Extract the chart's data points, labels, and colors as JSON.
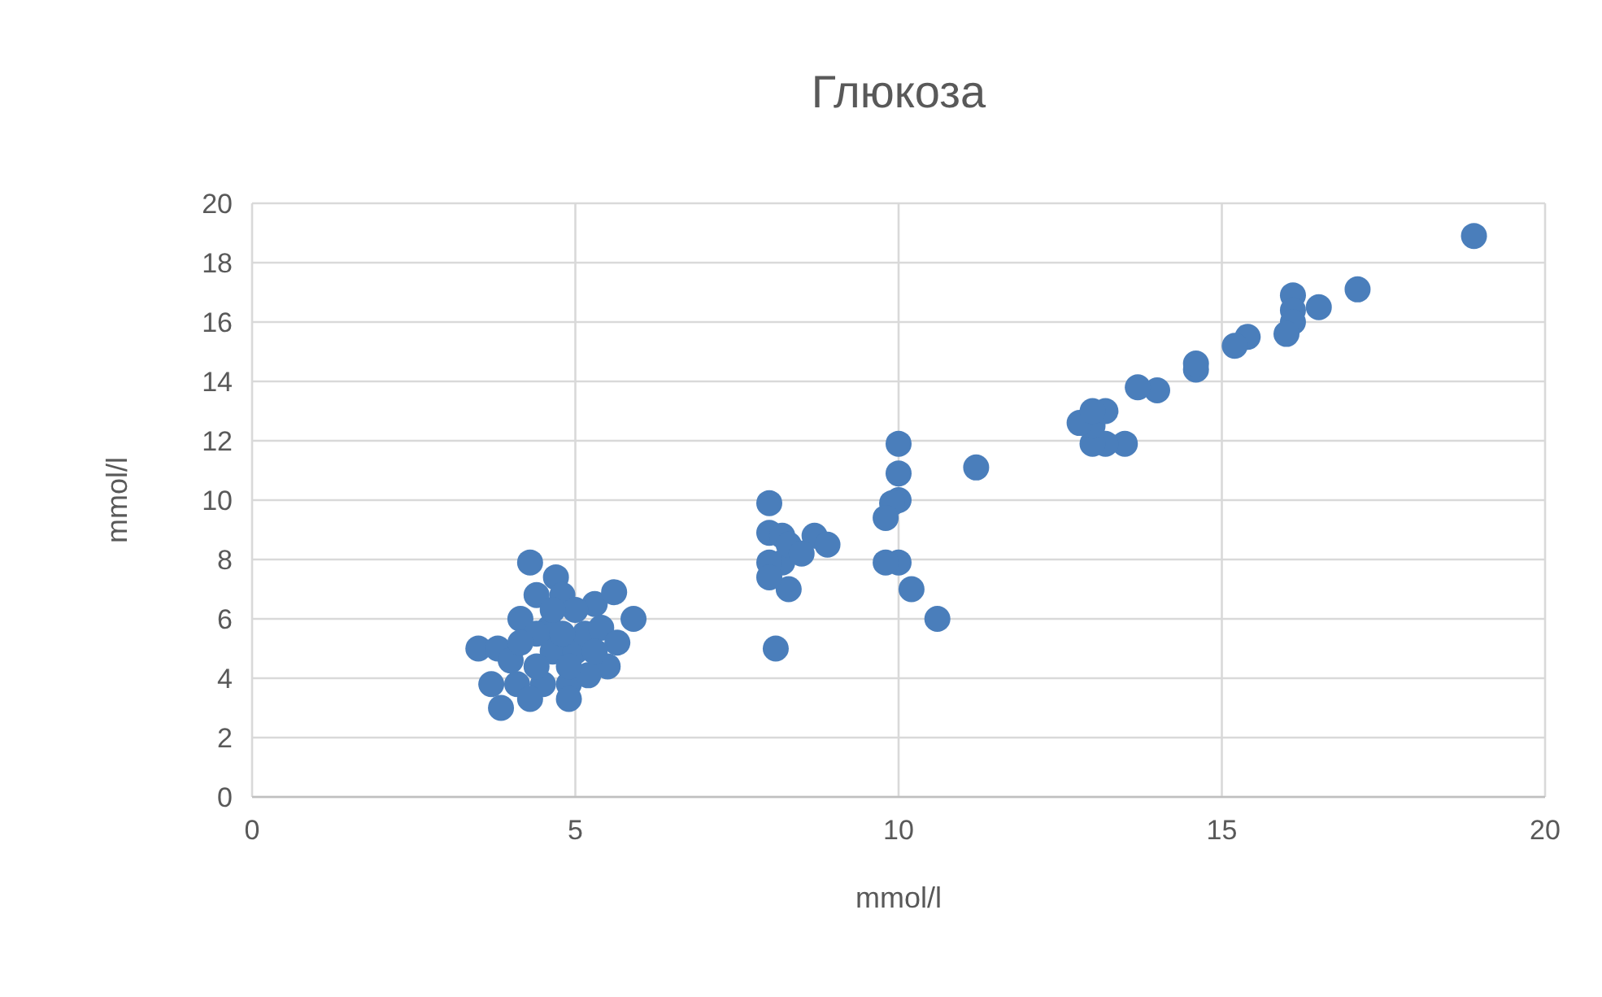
{
  "chart_data": {
    "type": "scatter",
    "title": "Глюкоза",
    "xlabel": "mmol/l",
    "ylabel": "mmol/l",
    "xlim": [
      0,
      20
    ],
    "xticks": [
      0,
      5,
      10,
      15,
      20
    ],
    "ylim": [
      0,
      20
    ],
    "yticks": [
      0,
      2,
      4,
      6,
      8,
      10,
      12,
      14,
      16,
      18,
      20
    ],
    "grid": true,
    "marker": "circle",
    "series": [
      {
        "color": "#4a7ebb",
        "x": [
          18.9,
          17.1,
          16.5,
          16.1,
          16.1,
          16.1,
          16.0,
          15.4,
          15.2,
          14.6,
          14.6,
          14.0,
          13.7,
          13.5,
          13.2,
          13.0,
          13.0,
          12.8,
          13.2,
          13.0,
          11.2,
          10.0,
          10.0,
          10.0,
          9.9,
          9.8,
          10.0,
          9.8,
          10.2,
          10.6,
          8.0,
          8.0,
          8.2,
          8.2,
          8.0,
          8.3,
          8.7,
          8.9,
          8.5,
          8.3,
          8.1,
          8.0,
          3.5,
          3.7,
          3.85,
          3.8,
          4.1,
          4.15,
          4.3,
          4.4,
          4.6,
          4.7,
          4.8,
          4.65,
          4.5,
          4.9,
          5.0,
          5.15,
          5.3,
          5.4,
          5.6,
          5.65,
          5.9,
          5.5,
          5.2,
          4.9,
          4.3,
          4.0,
          4.4,
          4.8,
          5.0,
          4.4,
          4.15,
          4.65,
          5.3,
          4.9
        ],
        "values": [
          18.9,
          17.1,
          16.5,
          16.9,
          16.4,
          16.0,
          15.6,
          15.5,
          15.2,
          14.4,
          14.6,
          13.7,
          13.8,
          11.9,
          11.9,
          11.9,
          12.5,
          12.6,
          13.0,
          13.0,
          11.1,
          11.9,
          10.9,
          10.0,
          9.9,
          9.4,
          7.9,
          7.9,
          7.0,
          6.0,
          9.9,
          8.9,
          8.8,
          7.9,
          7.9,
          8.5,
          8.8,
          8.5,
          8.2,
          7.0,
          5.0,
          7.4,
          5.0,
          3.8,
          3.0,
          5.0,
          3.8,
          6.0,
          7.9,
          6.8,
          5.7,
          7.4,
          6.8,
          4.9,
          3.8,
          3.8,
          4.9,
          5.5,
          6.5,
          5.7,
          6.9,
          5.2,
          6.0,
          4.4,
          4.1,
          3.3,
          3.3,
          4.6,
          4.4,
          5.5,
          6.3,
          5.5,
          5.2,
          6.3,
          4.9,
          4.4
        ]
      }
    ]
  }
}
